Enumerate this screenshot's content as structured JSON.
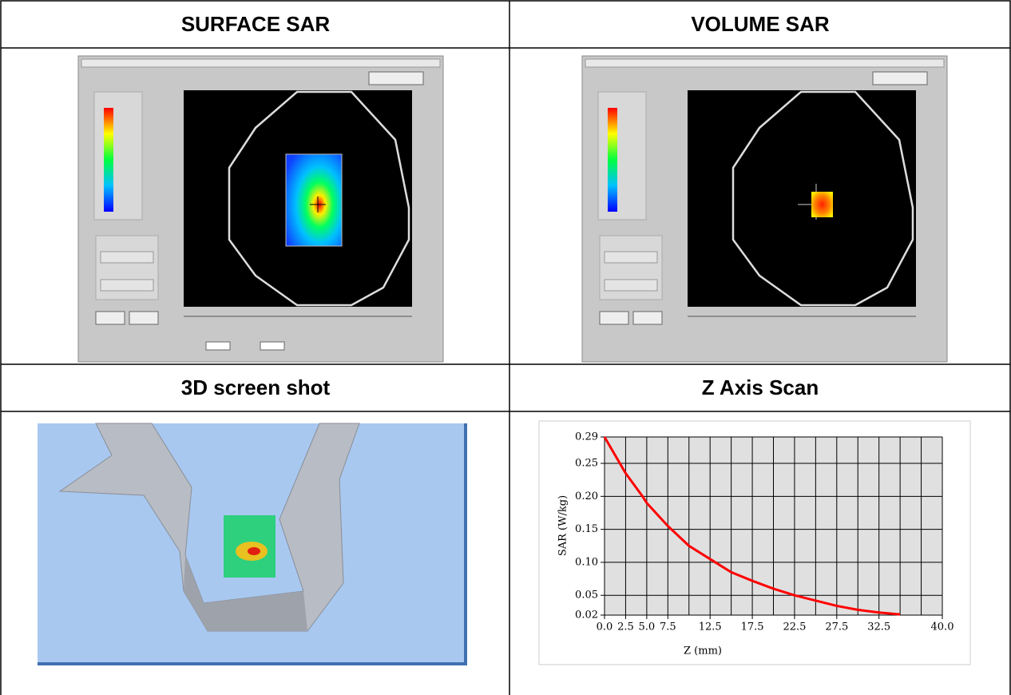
{
  "cells": [
    {
      "title": "SURFACE SAR"
    },
    {
      "title": "VOLUME SAR"
    },
    {
      "title": "3D screen shot"
    },
    {
      "title": "Z Axis Scan"
    }
  ],
  "chart_data": {
    "type": "line",
    "xlabel": "Z (mm)",
    "ylabel": "SAR (W/kg)",
    "x": [
      0,
      2.5,
      4.5,
      5,
      7.5,
      10,
      12.5,
      15,
      17.5,
      20,
      22.5,
      25,
      27.5,
      30,
      32.5,
      35
    ],
    "series": [
      {
        "color": "#ff0000",
        "values": [
          0.29,
          0.235,
          0.2,
          0.19,
          0.155,
          0.125,
          0.105,
          0.085,
          0.072,
          0.06,
          0.05,
          0.042,
          0.034,
          0.028,
          0.024,
          0.021
        ]
      }
    ],
    "xlim": [
      0,
      40
    ],
    "xticks": [
      {
        "value": 0,
        "label": "0.0"
      },
      2.5,
      {
        "value": 5,
        "label": "5.0"
      },
      7.5,
      12.5,
      17.5,
      22.5,
      27.5,
      32.5,
      {
        "value": 40,
        "label": "40.0"
      }
    ],
    "xgrid": [
      0,
      2.5,
      5,
      7.5,
      10,
      12.5,
      15,
      17.5,
      20,
      22.5,
      25,
      27.5,
      30,
      32.5,
      35,
      37.5,
      40
    ],
    "ylim": [
      0.02,
      0.29
    ],
    "yticks": [
      0.02,
      0.05,
      {
        "value": 0.1,
        "label": "0.10"
      },
      0.15,
      {
        "value": 0.2,
        "label": "0.20"
      },
      0.25,
      0.29
    ],
    "grid": true
  }
}
